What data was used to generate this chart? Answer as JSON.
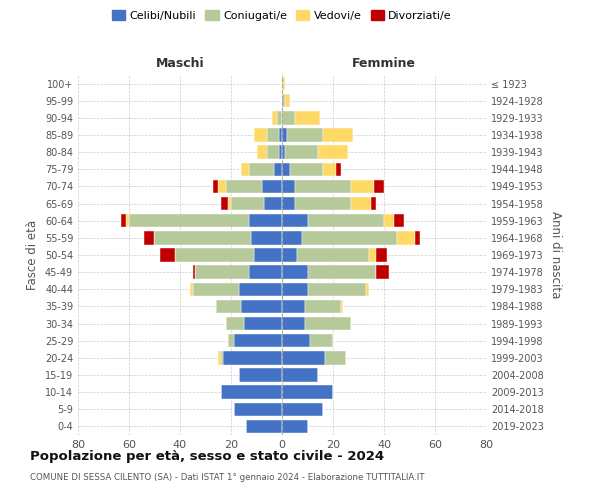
{
  "age_groups": [
    "0-4",
    "5-9",
    "10-14",
    "15-19",
    "20-24",
    "25-29",
    "30-34",
    "35-39",
    "40-44",
    "45-49",
    "50-54",
    "55-59",
    "60-64",
    "65-69",
    "70-74",
    "75-79",
    "80-84",
    "85-89",
    "90-94",
    "95-99",
    "100+"
  ],
  "birth_years": [
    "2019-2023",
    "2014-2018",
    "2009-2013",
    "2004-2008",
    "1999-2003",
    "1994-1998",
    "1989-1993",
    "1984-1988",
    "1979-1983",
    "1974-1978",
    "1969-1973",
    "1964-1968",
    "1959-1963",
    "1954-1958",
    "1949-1953",
    "1944-1948",
    "1939-1943",
    "1934-1938",
    "1929-1933",
    "1924-1928",
    "≤ 1923"
  ],
  "colors": {
    "celibi": "#4472c4",
    "coniugati": "#b5c99a",
    "vedovi": "#ffd966",
    "divorziati": "#c00000"
  },
  "maschi": {
    "celibi": [
      14,
      19,
      24,
      17,
      23,
      19,
      15,
      16,
      17,
      13,
      11,
      12,
      13,
      7,
      8,
      3,
      1,
      1,
      0,
      0,
      0
    ],
    "coniugati": [
      0,
      0,
      0,
      0,
      1,
      2,
      7,
      10,
      18,
      21,
      31,
      38,
      47,
      13,
      14,
      10,
      5,
      5,
      2,
      0,
      0
    ],
    "vedovi": [
      0,
      0,
      0,
      0,
      1,
      0,
      0,
      0,
      1,
      0,
      0,
      0,
      1,
      1,
      3,
      3,
      4,
      5,
      2,
      0,
      0
    ],
    "divorziati": [
      0,
      0,
      0,
      0,
      0,
      0,
      0,
      0,
      0,
      1,
      6,
      4,
      2,
      3,
      2,
      0,
      0,
      0,
      0,
      0,
      0
    ]
  },
  "femmine": {
    "celibi": [
      10,
      16,
      20,
      14,
      17,
      11,
      9,
      9,
      10,
      10,
      6,
      8,
      10,
      5,
      5,
      3,
      1,
      2,
      0,
      0,
      0
    ],
    "coniugati": [
      0,
      0,
      0,
      0,
      8,
      9,
      18,
      14,
      23,
      27,
      28,
      37,
      30,
      22,
      22,
      13,
      13,
      14,
      5,
      1,
      0
    ],
    "vedovi": [
      0,
      0,
      0,
      0,
      0,
      0,
      0,
      1,
      1,
      0,
      3,
      7,
      4,
      8,
      9,
      5,
      12,
      12,
      10,
      2,
      1
    ],
    "divorziati": [
      0,
      0,
      0,
      0,
      0,
      0,
      0,
      0,
      0,
      5,
      4,
      2,
      4,
      2,
      4,
      2,
      0,
      0,
      0,
      0,
      0
    ]
  },
  "xlim": 80,
  "title": "Popolazione per età, sesso e stato civile - 2024",
  "subtitle": "COMUNE DI SESSA CILENTO (SA) - Dati ISTAT 1° gennaio 2024 - Elaborazione TUTTITALIA.IT",
  "ylabel_left": "Fasce di età",
  "ylabel_right": "Anni di nascita",
  "xlabel_left": "Maschi",
  "xlabel_right": "Femmine",
  "background_color": "#ffffff",
  "grid_color": "#cccccc"
}
